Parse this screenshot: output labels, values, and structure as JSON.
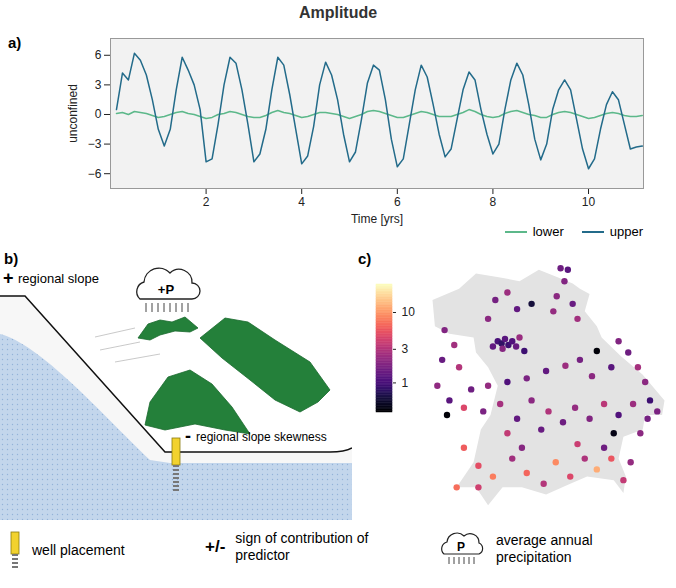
{
  "title": "Amplitude",
  "chart_data": [
    {
      "type": "line",
      "panel": "a)",
      "y_label": "unconfined",
      "x_label": "Time [yrs]",
      "x": [
        0.125,
        0.25,
        0.375,
        0.5,
        0.625,
        0.75,
        0.875,
        1,
        1.125,
        1.25,
        1.375,
        1.5,
        1.625,
        1.75,
        1.875,
        2,
        2.125,
        2.25,
        2.375,
        2.5,
        2.625,
        2.75,
        2.875,
        3,
        3.125,
        3.25,
        3.375,
        3.5,
        3.625,
        3.75,
        3.875,
        4,
        4.125,
        4.25,
        4.375,
        4.5,
        4.625,
        4.75,
        4.875,
        5,
        5.125,
        5.25,
        5.375,
        5.5,
        5.625,
        5.75,
        5.875,
        6,
        6.125,
        6.25,
        6.375,
        6.5,
        6.625,
        6.75,
        6.875,
        7,
        7.125,
        7.25,
        7.375,
        7.5,
        7.625,
        7.75,
        7.875,
        8,
        8.125,
        8.25,
        8.375,
        8.5,
        8.625,
        8.75,
        8.875,
        9,
        9.125,
        9.25,
        9.375,
        9.5,
        9.625,
        9.75,
        9.875,
        10,
        10.125,
        10.25,
        10.375,
        10.5,
        10.625,
        10.75,
        10.875,
        11,
        11.125
      ],
      "series": [
        {
          "name": "lower",
          "color": "#5cb88a",
          "values": [
            0.1,
            0.2,
            0.0,
            0.3,
            0.2,
            0.1,
            -0.1,
            -0.3,
            -0.2,
            0.0,
            0.2,
            0.3,
            0.1,
            0.0,
            -0.2,
            -0.4,
            -0.3,
            0.0,
            0.1,
            0.3,
            0.2,
            0.0,
            -0.2,
            -0.3,
            -0.3,
            -0.1,
            0.2,
            0.4,
            0.2,
            0.1,
            -0.1,
            -0.3,
            -0.2,
            0.0,
            0.2,
            0.2,
            0.1,
            0.0,
            -0.2,
            -0.4,
            -0.2,
            0.0,
            0.3,
            0.4,
            0.3,
            0.1,
            -0.1,
            -0.3,
            -0.3,
            -0.1,
            0.1,
            0.3,
            0.2,
            0.0,
            -0.2,
            -0.2,
            -0.2,
            0.0,
            0.2,
            0.5,
            0.3,
            0.0,
            -0.2,
            -0.3,
            -0.2,
            0.1,
            0.3,
            0.4,
            0.2,
            0.0,
            -0.1,
            -0.3,
            -0.3,
            0.0,
            0.2,
            0.3,
            0.2,
            0.0,
            -0.2,
            -0.4,
            -0.3,
            -0.1,
            0.1,
            0.2,
            0.1,
            -0.1,
            -0.2,
            -0.2,
            -0.1
          ]
        },
        {
          "name": "upper",
          "color": "#236b8a",
          "values": [
            0.5,
            4.2,
            3.5,
            6.2,
            5.5,
            4.0,
            1.5,
            -1.5,
            -3.2,
            -1.5,
            2.5,
            5.8,
            4.5,
            3.0,
            0.5,
            -4.8,
            -4.5,
            -1.0,
            3.0,
            5.8,
            5.2,
            2.5,
            -1.0,
            -4.8,
            -4.0,
            -1.5,
            2.5,
            5.8,
            5.0,
            2.0,
            -1.5,
            -5.0,
            -4.2,
            -1.2,
            3.0,
            5.3,
            4.0,
            1.5,
            -2.0,
            -4.8,
            -3.8,
            -0.5,
            3.2,
            5.0,
            4.5,
            1.5,
            -2.5,
            -5.3,
            -4.5,
            -1.0,
            2.5,
            5.0,
            3.8,
            1.0,
            -2.0,
            -4.3,
            -3.5,
            -0.5,
            2.5,
            4.3,
            3.5,
            0.5,
            -2.0,
            -4.0,
            -3.0,
            0.5,
            3.5,
            5.2,
            4.0,
            1.0,
            -2.5,
            -4.6,
            -3.0,
            0.5,
            2.5,
            3.5,
            2.5,
            -0.5,
            -3.5,
            -5.5,
            -4.5,
            -1.5,
            1.0,
            2.3,
            1.5,
            -1.0,
            -3.5,
            -3.3,
            -3.2
          ]
        }
      ],
      "xlim": [
        0,
        11.15
      ],
      "ylim": [
        -7.5,
        7.7
      ],
      "xticks": [
        2,
        4,
        6,
        8,
        10
      ],
      "yticks": [
        -6,
        -3,
        0,
        3,
        6
      ],
      "grid": false,
      "legend": "bottom-right"
    },
    {
      "type": "scatter",
      "panel": "c)",
      "log": true,
      "tick_labels": false,
      "colorbar": {
        "range": [
          0.38,
          25
        ],
        "ticks": [
          1,
          3,
          10
        ]
      },
      "points": [
        {
          "lon": 11.7,
          "lat": 50.52,
          "value": 1.5
        },
        {
          "lon": 11.85,
          "lat": 50.5,
          "value": 1.2
        },
        {
          "lon": 11.78,
          "lat": 50.35,
          "value": 1.8
        },
        {
          "lon": 11.62,
          "lat": 50.15,
          "value": 2.0
        },
        {
          "lon": 11.95,
          "lat": 50.05,
          "value": 1.4
        },
        {
          "lon": 11.55,
          "lat": 49.95,
          "value": 2.2
        },
        {
          "lon": 12.05,
          "lat": 49.85,
          "value": 2.5
        },
        {
          "lon": 10.35,
          "lat": 50.1,
          "value": 1.6
        },
        {
          "lon": 10.6,
          "lat": 50.2,
          "value": 2.4
        },
        {
          "lon": 10.8,
          "lat": 49.98,
          "value": 1.3
        },
        {
          "lon": 10.2,
          "lat": 49.85,
          "value": 2.0
        },
        {
          "lon": 11.1,
          "lat": 50.05,
          "value": 0.6
        },
        {
          "lon": 10.4,
          "lat": 49.55,
          "value": 1.0
        },
        {
          "lon": 10.48,
          "lat": 49.52,
          "value": 0.8
        },
        {
          "lon": 10.55,
          "lat": 49.58,
          "value": 1.2
        },
        {
          "lon": 10.62,
          "lat": 49.5,
          "value": 0.9
        },
        {
          "lon": 10.7,
          "lat": 49.55,
          "value": 1.1
        },
        {
          "lon": 10.78,
          "lat": 49.48,
          "value": 1.4
        },
        {
          "lon": 10.5,
          "lat": 49.45,
          "value": 1.9
        },
        {
          "lon": 10.85,
          "lat": 49.6,
          "value": 2.3
        },
        {
          "lon": 10.3,
          "lat": 49.48,
          "value": 1.3
        },
        {
          "lon": 10.95,
          "lat": 49.42,
          "value": 0.9
        },
        {
          "lon": 12.45,
          "lat": 49.42,
          "value": 0.4
        },
        {
          "lon": 12.9,
          "lat": 49.55,
          "value": 1.8
        },
        {
          "lon": 13.1,
          "lat": 49.4,
          "value": 1.5
        },
        {
          "lon": 13.3,
          "lat": 49.2,
          "value": 2.6
        },
        {
          "lon": 12.75,
          "lat": 49.2,
          "value": 1.2
        },
        {
          "lon": 13.45,
          "lat": 49.0,
          "value": 2.0
        },
        {
          "lon": 9.85,
          "lat": 48.9,
          "value": 1.5
        },
        {
          "lon": 10.2,
          "lat": 48.95,
          "value": 2.2
        },
        {
          "lon": 10.6,
          "lat": 49.0,
          "value": 1.1
        },
        {
          "lon": 11.0,
          "lat": 49.05,
          "value": 1.7
        },
        {
          "lon": 11.4,
          "lat": 49.15,
          "value": 1.3
        },
        {
          "lon": 11.8,
          "lat": 49.22,
          "value": 2.4
        },
        {
          "lon": 12.1,
          "lat": 49.3,
          "value": 1.6
        },
        {
          "lon": 12.35,
          "lat": 49.08,
          "value": 2.0
        },
        {
          "lon": 9.3,
          "lat": 49.7,
          "value": 1.8
        },
        {
          "lon": 9.5,
          "lat": 49.5,
          "value": 2.5
        },
        {
          "lon": 9.25,
          "lat": 49.3,
          "value": 1.4
        },
        {
          "lon": 9.6,
          "lat": 49.2,
          "value": 3.0
        },
        {
          "lon": 9.15,
          "lat": 48.95,
          "value": 2.1
        },
        {
          "lon": 9.4,
          "lat": 48.75,
          "value": 1.2
        },
        {
          "lon": 9.35,
          "lat": 48.55,
          "value": 0.4
        },
        {
          "lon": 9.7,
          "lat": 48.65,
          "value": 4.5
        },
        {
          "lon": 10.1,
          "lat": 48.6,
          "value": 1.7
        },
        {
          "lon": 10.45,
          "lat": 48.7,
          "value": 2.6
        },
        {
          "lon": 10.8,
          "lat": 48.5,
          "value": 1.3
        },
        {
          "lon": 11.1,
          "lat": 48.75,
          "value": 2.0
        },
        {
          "lon": 11.45,
          "lat": 48.6,
          "value": 2.9
        },
        {
          "lon": 11.75,
          "lat": 48.45,
          "value": 1.5
        },
        {
          "lon": 12.0,
          "lat": 48.65,
          "value": 2.2
        },
        {
          "lon": 12.3,
          "lat": 48.5,
          "value": 1.8
        },
        {
          "lon": 12.6,
          "lat": 48.7,
          "value": 3.2
        },
        {
          "lon": 12.9,
          "lat": 48.55,
          "value": 1.1
        },
        {
          "lon": 13.2,
          "lat": 48.7,
          "value": 2.4
        },
        {
          "lon": 13.5,
          "lat": 48.5,
          "value": 1.6
        },
        {
          "lon": 13.35,
          "lat": 48.3,
          "value": 2.0
        },
        {
          "lon": 12.8,
          "lat": 48.3,
          "value": 0.45
        },
        {
          "lon": 11.3,
          "lat": 48.35,
          "value": 1.4
        },
        {
          "lon": 10.6,
          "lat": 48.3,
          "value": 3.5
        },
        {
          "lon": 9.7,
          "lat": 48.1,
          "value": 6.0
        },
        {
          "lon": 10.0,
          "lat": 47.85,
          "value": 5.0
        },
        {
          "lon": 10.3,
          "lat": 47.7,
          "value": 8.0
        },
        {
          "lon": 10.0,
          "lat": 47.55,
          "value": 4.0
        },
        {
          "lon": 10.7,
          "lat": 47.95,
          "value": 2.5
        },
        {
          "lon": 11.0,
          "lat": 47.75,
          "value": 6.5
        },
        {
          "lon": 11.35,
          "lat": 47.6,
          "value": 3.0
        },
        {
          "lon": 11.6,
          "lat": 47.9,
          "value": 9.0
        },
        {
          "lon": 11.9,
          "lat": 47.7,
          "value": 4.5
        },
        {
          "lon": 12.2,
          "lat": 47.95,
          "value": 2.8
        },
        {
          "lon": 12.45,
          "lat": 47.8,
          "value": 12.0
        },
        {
          "lon": 12.75,
          "lat": 47.95,
          "value": 5.5
        },
        {
          "lon": 13.0,
          "lat": 47.65,
          "value": 3.5
        },
        {
          "lon": 13.15,
          "lat": 47.9,
          "value": 2.2
        },
        {
          "lon": 10.9,
          "lat": 48.1,
          "value": 1.9
        },
        {
          "lon": 12.6,
          "lat": 48.1,
          "value": 1.5
        },
        {
          "lon": 13.55,
          "lat": 48.75,
          "value": 0.9
        },
        {
          "lon": 13.7,
          "lat": 48.6,
          "value": 1.7
        },
        {
          "lon": 9.55,
          "lat": 47.55,
          "value": 7.0
        },
        {
          "lon": 12.05,
          "lat": 48.15,
          "value": 3.8
        }
      ]
    }
  ],
  "diagram": {
    "panel": "b)",
    "regional_slope": {
      "sign": "+",
      "label": "regional slope"
    },
    "precipitation": {
      "sign": "+",
      "label": "P"
    },
    "skewness": {
      "sign": "-",
      "label": "regional slope skewness"
    }
  },
  "key": [
    {
      "label": "well placement"
    },
    {
      "symbol": "+/-",
      "label": "sign of contribution of predictor"
    },
    {
      "symbol": "P",
      "label": "average annual precipitation"
    }
  ]
}
